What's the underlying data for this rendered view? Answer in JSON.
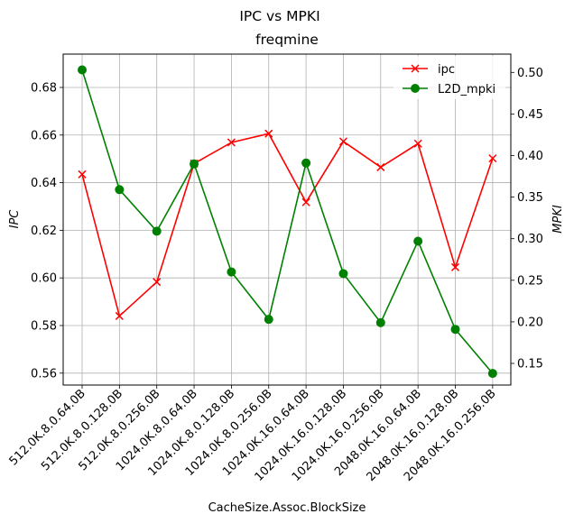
{
  "chart_data": {
    "type": "line",
    "suptitle": "IPC vs MPKI",
    "title": "freqmine",
    "xlabel": "CacheSize.Assoc.BlockSize",
    "ylabel_left": "IPC",
    "ylabel_right": "MPKI",
    "categories": [
      "512.0K.8.0.64.0B",
      "512.0K.8.0.128.0B",
      "512.0K.8.0.256.0B",
      "1024.0K.8.0.64.0B",
      "1024.0K.8.0.128.0B",
      "1024.0K.8.0.256.0B",
      "1024.0K.16.0.64.0B",
      "1024.0K.16.0.128.0B",
      "1024.0K.16.0.256.0B",
      "2048.0K.16.0.64.0B",
      "2048.0K.16.0.128.0B",
      "2048.0K.16.0.256.0B"
    ],
    "ylim_left": [
      0.555,
      0.694
    ],
    "ylim_right": [
      0.124,
      0.522
    ],
    "yticks_left": [
      "0.56",
      "0.58",
      "0.60",
      "0.62",
      "0.64",
      "0.66",
      "0.68"
    ],
    "yticks_right": [
      "0.15",
      "0.20",
      "0.25",
      "0.30",
      "0.35",
      "0.40",
      "0.45",
      "0.50"
    ],
    "grid": true,
    "legend_position": "top-right",
    "series": [
      {
        "name": "ipc",
        "axis": "left",
        "color": "#ff0000",
        "marker": "x",
        "values": [
          0.6435,
          0.584,
          0.5983,
          0.648,
          0.6569,
          0.6606,
          0.6318,
          0.6573,
          0.6465,
          0.6564,
          0.6045,
          0.6502
        ]
      },
      {
        "name": "L2D_mpki",
        "axis": "right",
        "color": "#008000",
        "marker": "circle",
        "values": [
          0.503,
          0.359,
          0.309,
          0.39,
          0.26,
          0.203,
          0.391,
          0.258,
          0.199,
          0.297,
          0.191,
          0.138
        ]
      }
    ]
  }
}
